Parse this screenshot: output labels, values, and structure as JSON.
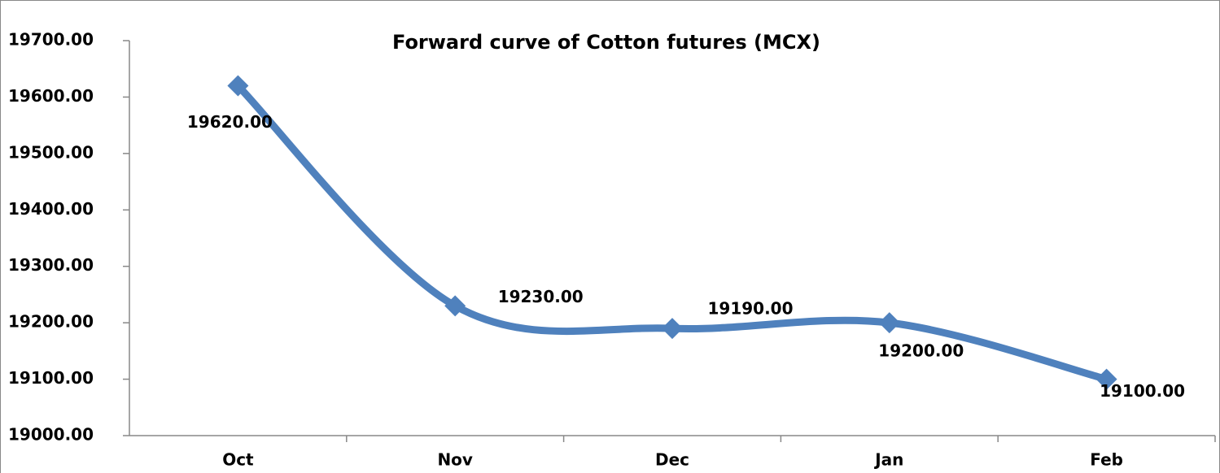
{
  "chart_data": {
    "type": "line",
    "title": "Forward curve of Cotton futures (MCX)",
    "categories": [
      "Oct",
      "Nov",
      "Dec",
      "Jan",
      "Feb"
    ],
    "series": [
      {
        "name": "Cotton futures",
        "color": "#4f81bd",
        "values": [
          19620,
          19230,
          19190,
          19200,
          19100
        ],
        "value_labels": [
          "19620.00",
          "19230.00",
          "19190.00",
          "19200.00",
          "19100.00"
        ]
      }
    ],
    "ylim": [
      19000,
      19700
    ],
    "yticks": [
      {
        "value": 19000,
        "label": "19000.00"
      },
      {
        "value": 19100,
        "label": "19100.00"
      },
      {
        "value": 19200,
        "label": "19200.00"
      },
      {
        "value": 19300,
        "label": "19300.00"
      },
      {
        "value": 19400,
        "label": "19400.00"
      },
      {
        "value": 19500,
        "label": "19500.00"
      },
      {
        "value": 19600,
        "label": "19600.00"
      },
      {
        "value": 19700,
        "label": "19700.00"
      }
    ],
    "smooth": true,
    "marker": "diamond"
  }
}
